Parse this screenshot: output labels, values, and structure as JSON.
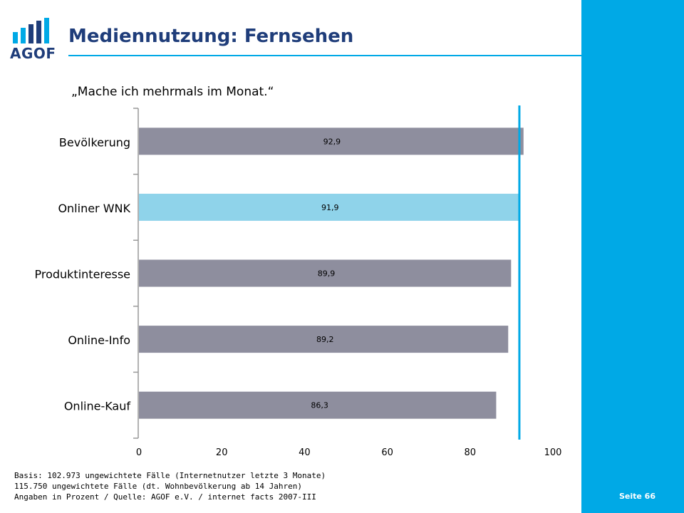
{
  "header": {
    "logo_text": "AGOF",
    "title": "Mediennutzung: Fernsehen",
    "subtitle": "„Mache ich mehrmals im Monat.“"
  },
  "footer": {
    "notes": [
      "Basis: 102.973 ungewichtete Fälle (Internetnutzer letzte 3 Monate)",
      "115.750 ungewichtete Fälle (dt. Wohnbevölkerung ab 14 Jahren)",
      "Angaben in Prozent / Quelle: AGOF e.V. / internet facts 2007-III"
    ],
    "page_label": "Seite 66"
  },
  "colors": {
    "accent": "#00a9e6",
    "title": "#1f3d7a",
    "bar_default": "#8e8e9e",
    "bar_highlight": "#8fd3ea",
    "reference_line": "#00a9e6"
  },
  "chart_data": {
    "type": "bar",
    "orientation": "horizontal",
    "categories": [
      "Bevölkerung",
      "Onliner WNK",
      "Produktinteresse",
      "Online-Info",
      "Online-Kauf"
    ],
    "values": [
      92.9,
      91.9,
      89.9,
      89.2,
      86.3
    ],
    "value_labels": [
      "92,9",
      "91,9",
      "89,9",
      "89,2",
      "86,3"
    ],
    "highlight_index": 1,
    "reference_value": 91.9,
    "xlim": [
      0,
      100
    ],
    "xticks": [
      0,
      20,
      40,
      60,
      80,
      100
    ],
    "title": "",
    "xlabel": "",
    "ylabel": ""
  }
}
